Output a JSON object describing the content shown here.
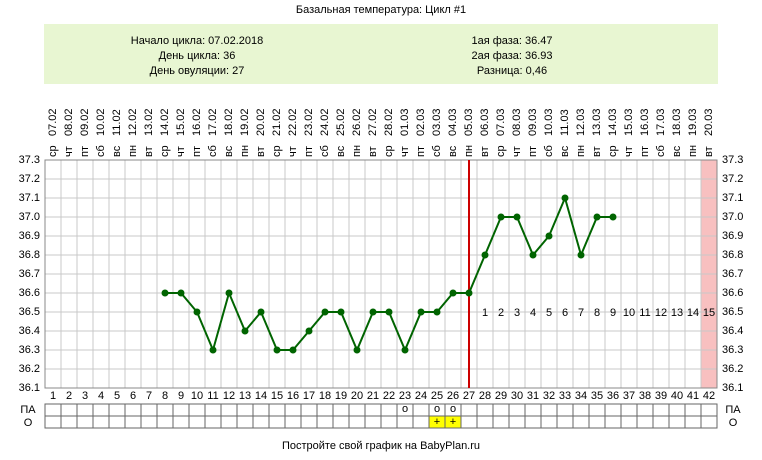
{
  "chart_data": {
    "type": "line",
    "title": "Базальная температура: Цикл #1",
    "info": {
      "left": [
        "Начало цикла: 07.02.2018",
        "День цикла: 36",
        "День овуляции: 27"
      ],
      "right": [
        "1ая фаза: 36.47",
        "2ая фаза: 36.93",
        "Разница: 0,46"
      ]
    },
    "x": [
      1,
      2,
      3,
      4,
      5,
      6,
      7,
      8,
      9,
      10,
      11,
      12,
      13,
      14,
      15,
      16,
      17,
      18,
      19,
      20,
      21,
      22,
      23,
      24,
      25,
      26,
      27,
      28,
      29,
      30,
      31,
      32,
      33,
      34,
      35,
      36,
      37,
      38,
      39,
      40,
      41,
      42
    ],
    "xlim": [
      0.5,
      42.5
    ],
    "dates": [
      "07.02",
      "08.02",
      "09.02",
      "10.02",
      "11.02",
      "12.02",
      "13.02",
      "14.02",
      "15.02",
      "16.02",
      "17.02",
      "18.02",
      "19.02",
      "20.02",
      "21.02",
      "22.02",
      "23.02",
      "24.02",
      "25.02",
      "26.02",
      "27.02",
      "28.02",
      "01.03",
      "02.03",
      "03.03",
      "04.03",
      "05.03",
      "06.03",
      "07.03",
      "08.03",
      "09.03",
      "10.03",
      "11.03",
      "12.03",
      "13.03",
      "14.03",
      "15.03",
      "16.03",
      "17.03",
      "18.03",
      "19.03",
      "20.03"
    ],
    "weekdays": [
      "ср",
      "чт",
      "пт",
      "сб",
      "вс",
      "пн",
      "вт",
      "ср",
      "чт",
      "пт",
      "сб",
      "вс",
      "пн",
      "вт",
      "ср",
      "чт",
      "пт",
      "сб",
      "вс",
      "пн",
      "вт",
      "ср",
      "чт",
      "пт",
      "сб",
      "вс",
      "пн",
      "вт",
      "ср",
      "чт",
      "пт",
      "сб",
      "вс",
      "пн",
      "вт",
      "ср",
      "чт",
      "пт",
      "сб",
      "вс",
      "пн",
      "вт"
    ],
    "series": [
      {
        "color": "#006400",
        "values": [
          null,
          null,
          null,
          null,
          null,
          null,
          null,
          36.6,
          36.6,
          36.5,
          36.3,
          36.6,
          36.4,
          36.5,
          36.3,
          36.3,
          36.4,
          36.5,
          36.5,
          36.3,
          36.5,
          36.5,
          36.3,
          36.5,
          36.5,
          36.6,
          36.6,
          36.8,
          37.0,
          37.0,
          36.8,
          36.9,
          37.1,
          36.8,
          37.0,
          37.0,
          null,
          null,
          null,
          null,
          null,
          null
        ]
      }
    ],
    "ylim": [
      36.1,
      37.3
    ],
    "yticks": [
      36.1,
      36.2,
      36.3,
      36.4,
      36.5,
      36.6,
      36.7,
      36.8,
      36.9,
      {
        "value": 37,
        "label": "37.0"
      },
      37.1,
      37.2,
      37.3
    ],
    "grid": true,
    "ovulation_day": 27,
    "shaded_day": 42,
    "phase_labels": [
      null,
      null,
      null,
      null,
      null,
      null,
      null,
      null,
      null,
      null,
      null,
      null,
      null,
      null,
      null,
      null,
      null,
      null,
      null,
      null,
      null,
      null,
      null,
      null,
      null,
      null,
      null,
      "1",
      "2",
      "3",
      "4",
      "5",
      "6",
      "7",
      "8",
      "9",
      "10",
      "11",
      "12",
      "13",
      "14",
      "15"
    ],
    "row_labels": [
      "ПА",
      "О"
    ],
    "pa": [
      null,
      null,
      null,
      null,
      null,
      null,
      null,
      null,
      null,
      null,
      null,
      null,
      null,
      null,
      null,
      null,
      null,
      null,
      null,
      null,
      null,
      null,
      "о",
      null,
      "о",
      "о",
      null,
      null,
      null,
      null,
      null,
      null,
      null,
      null,
      null,
      null,
      null,
      null,
      null,
      null,
      null,
      null
    ],
    "o": [
      null,
      null,
      null,
      null,
      null,
      null,
      null,
      null,
      null,
      null,
      null,
      null,
      null,
      null,
      null,
      null,
      null,
      null,
      null,
      null,
      null,
      null,
      null,
      null,
      "+",
      "+",
      null,
      null,
      null,
      null,
      null,
      null,
      null,
      null,
      null,
      null,
      null,
      null,
      null,
      null,
      null,
      null
    ],
    "footer": "Постройте свой график на BabyPlan.ru"
  }
}
